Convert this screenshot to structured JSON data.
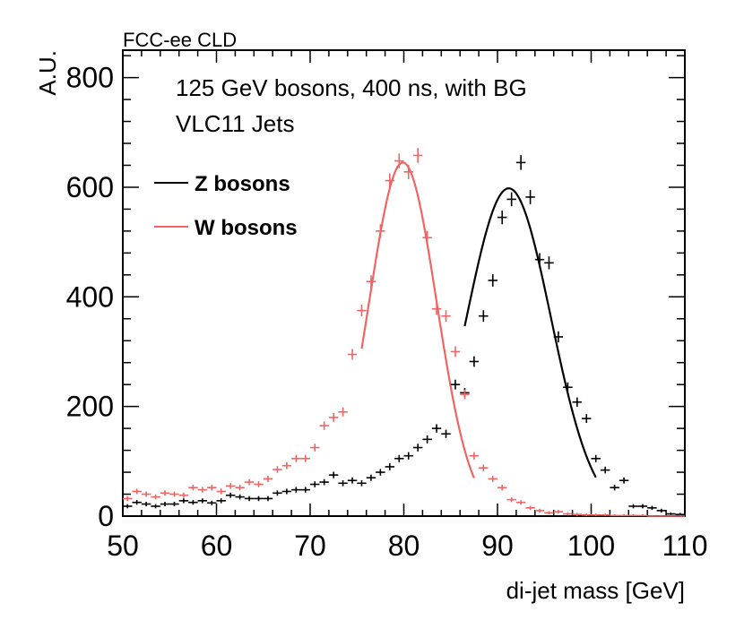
{
  "chart_data": {
    "type": "scatter",
    "header_label": "FCC-ee CLD",
    "title": "125 GeV bosons, 400 ns, with BG",
    "subtitle": "VLC11 Jets",
    "xlabel": "di-jet mass [GeV]",
    "ylabel": "A.U.",
    "xlim": [
      50,
      110
    ],
    "ylim": [
      0,
      850
    ],
    "xticks": [
      50,
      60,
      70,
      80,
      90,
      100,
      110
    ],
    "yticks": [
      0,
      200,
      400,
      600,
      800
    ],
    "legend_position": "top-left",
    "bin_width": 1,
    "series": [
      {
        "name": "Z bosons",
        "color": "#000000",
        "x": [
          50.5,
          51.5,
          52.5,
          53.5,
          54.5,
          55.5,
          56.5,
          57.5,
          58.5,
          59.5,
          60.5,
          61.5,
          62.5,
          63.5,
          64.5,
          65.5,
          66.5,
          67.5,
          68.5,
          69.5,
          70.5,
          71.5,
          72.5,
          73.5,
          74.5,
          75.5,
          76.5,
          77.5,
          78.5,
          79.5,
          80.5,
          81.5,
          82.5,
          83.5,
          84.5,
          85.5,
          86.5,
          87.5,
          88.5,
          89.5,
          90.5,
          91.5,
          92.5,
          93.5,
          94.5,
          95.5,
          96.5,
          97.5,
          98.5,
          99.5,
          100.5,
          101.5,
          102.5,
          103.5,
          104.5,
          105.5,
          106.5,
          107.5,
          108.5,
          109.5
        ],
        "y": [
          18,
          25,
          22,
          18,
          22,
          22,
          28,
          25,
          28,
          24,
          28,
          38,
          35,
          32,
          32,
          32,
          42,
          45,
          48,
          48,
          58,
          62,
          75,
          60,
          65,
          60,
          70,
          80,
          90,
          105,
          110,
          125,
          140,
          160,
          150,
          240,
          225,
          282,
          365,
          430,
          545,
          578,
          645,
          582,
          468,
          462,
          327,
          235,
          208,
          178,
          105,
          84,
          52,
          65,
          18,
          18,
          15,
          10,
          4,
          3
        ]
      },
      {
        "name": "W bosons",
        "color": "#f06464",
        "x": [
          50.5,
          51.5,
          52.5,
          53.5,
          54.5,
          55.5,
          56.5,
          57.5,
          58.5,
          59.5,
          60.5,
          61.5,
          62.5,
          63.5,
          64.5,
          65.5,
          66.5,
          67.5,
          68.5,
          69.5,
          70.5,
          71.5,
          72.5,
          73.5,
          74.5,
          75.5,
          76.5,
          77.5,
          78.5,
          79.5,
          80.5,
          81.5,
          82.5,
          83.5,
          84.5,
          85.5,
          86.5,
          87.5,
          88.5,
          89.5,
          90.5,
          91.5,
          92.5,
          93.5,
          94.5,
          95.5,
          96.5,
          97.5,
          98.5,
          99.5,
          100.5,
          101.5,
          102.5,
          103.5,
          104.5,
          105.5,
          106.5,
          107.5,
          108.5,
          109.5
        ],
        "y": [
          32,
          45,
          40,
          35,
          42,
          40,
          38,
          52,
          48,
          52,
          45,
          55,
          52,
          62,
          58,
          68,
          85,
          92,
          105,
          105,
          125,
          165,
          180,
          190,
          295,
          375,
          428,
          520,
          612,
          648,
          628,
          658,
          508,
          378,
          365,
          300,
          222,
          110,
          88,
          68,
          52,
          30,
          25,
          15,
          10,
          6,
          8,
          4,
          3,
          2,
          2,
          2,
          1,
          1,
          1,
          1,
          0,
          0,
          0,
          0
        ]
      }
    ],
    "fits": [
      {
        "name": "Z bosons",
        "color": "#000000",
        "type": "gaussian",
        "mean": 91.2,
        "sigma": 4.5,
        "amplitude": 598,
        "x_range": [
          86.5,
          100.5
        ]
      },
      {
        "name": "W bosons",
        "color": "#f06464",
        "type": "gaussian",
        "mean": 79.9,
        "sigma": 3.6,
        "amplitude": 645,
        "x_range": [
          75.5,
          87.5
        ]
      }
    ]
  }
}
